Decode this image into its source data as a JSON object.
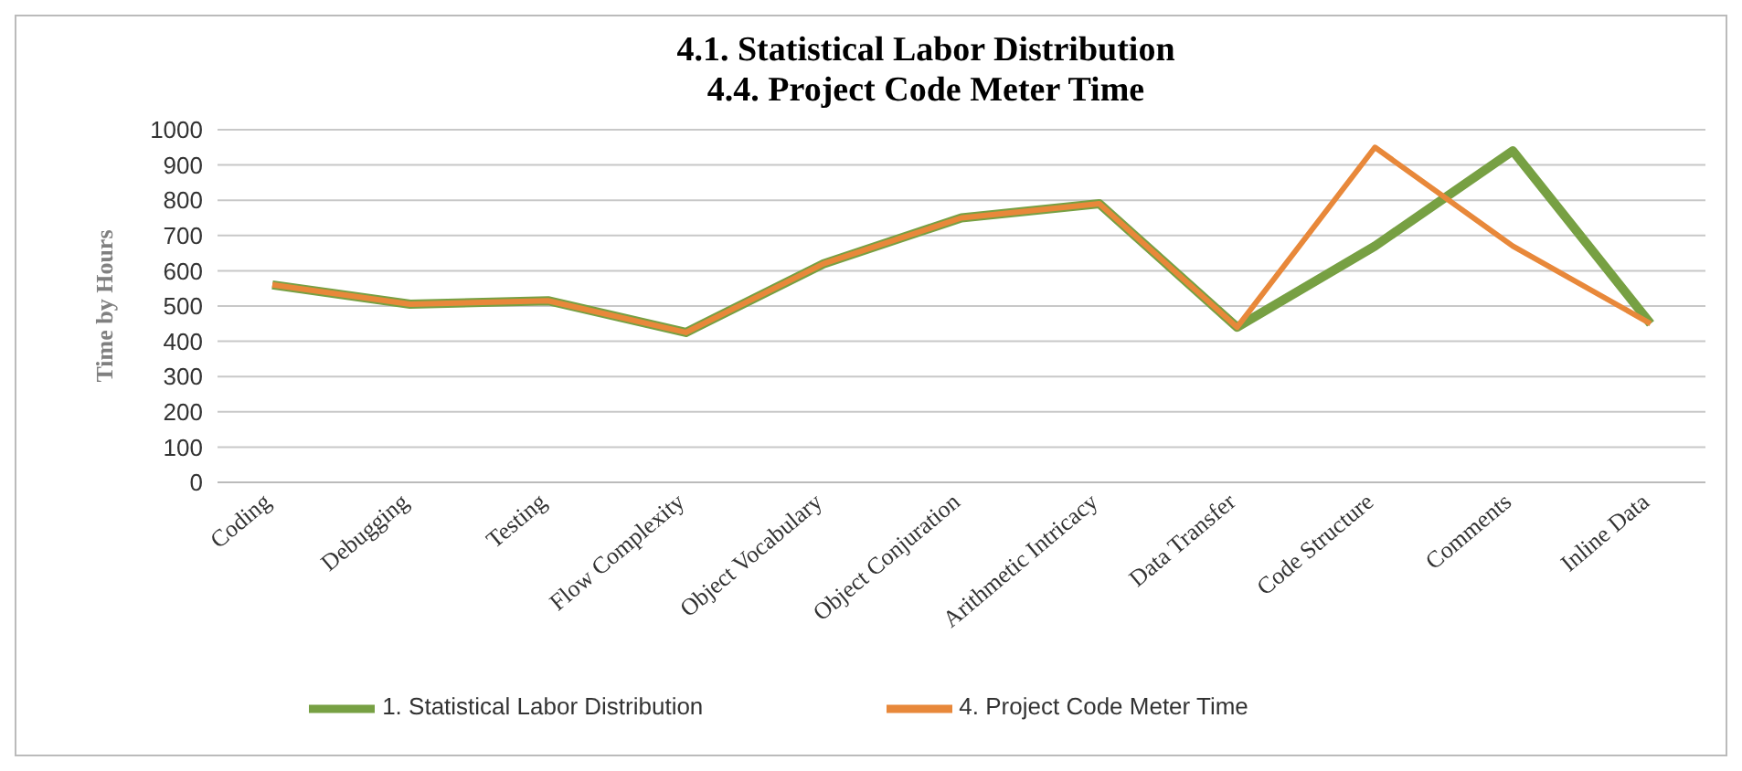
{
  "chart_data": {
    "type": "line",
    "title": "4.1. Statistical Labor Distribution\n4.4. Project Code Meter Time",
    "ylabel": "Time by Hours",
    "categories": [
      "Coding",
      "Debugging",
      "Testing",
      "Flow Complexity",
      "Object Vocabulary",
      "Object Conjuration",
      "Arithmetic Intricacy",
      "Data Transfer",
      "Code Structure",
      "Comments",
      "Inline Data"
    ],
    "series": [
      {
        "name": "1. Statistical Labor Distribution",
        "color": "#77a043",
        "values": [
          560,
          505,
          515,
          425,
          620,
          750,
          790,
          440,
          670,
          940,
          450
        ]
      },
      {
        "name": "4. Project Code Meter Time",
        "color": "#e8883a",
        "values": [
          560,
          505,
          515,
          425,
          620,
          750,
          790,
          440,
          950,
          670,
          450
        ]
      }
    ],
    "ylim": [
      0,
      1000
    ],
    "yticks": [
      0,
      100,
      200,
      300,
      400,
      500,
      600,
      700,
      800,
      900,
      1000
    ],
    "grid": "y",
    "legend": "bottom",
    "marker": "none"
  }
}
